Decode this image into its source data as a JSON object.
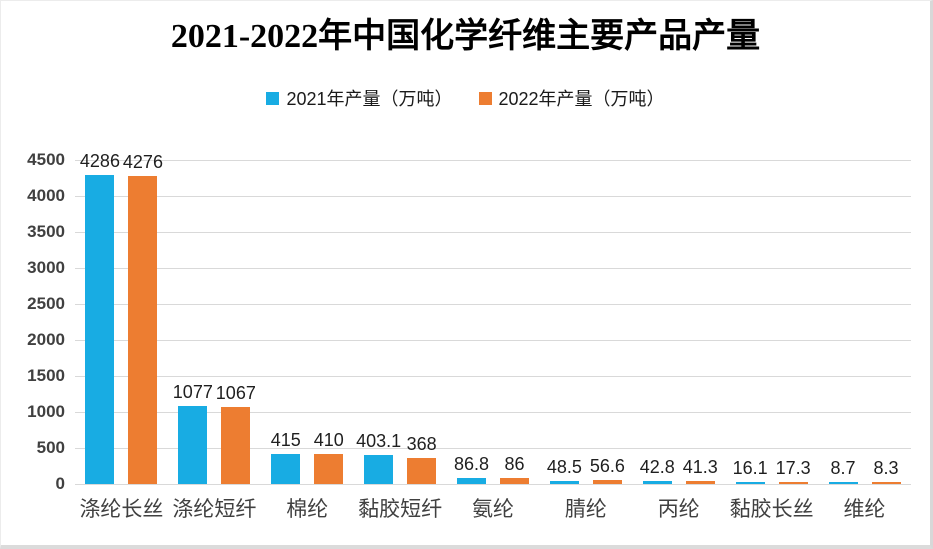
{
  "title": "2021-2022年中国化学纤维主要产品产量",
  "legend": {
    "items": [
      {
        "label": "2021年产量（万吨）",
        "color": "#18ACE3"
      },
      {
        "label": "2022年产量（万吨）",
        "color": "#ED7D31"
      }
    ]
  },
  "chart_data": {
    "type": "bar",
    "title": "2021-2022年中国化学纤维主要产品产量",
    "categories": [
      "涤纶长丝",
      "涤纶短纤",
      "棉纶",
      "黏胶短纤",
      "氨纶",
      "腈纶",
      "丙纶",
      "黏胶长丝",
      "维纶"
    ],
    "series": [
      {
        "name": "2021年产量（万吨）",
        "color": "#18ACE3",
        "values": [
          4286,
          1077,
          415,
          403.1,
          86.8,
          48.5,
          42.8,
          16.1,
          8.7
        ]
      },
      {
        "name": "2022年产量（万吨）",
        "color": "#ED7D31",
        "values": [
          4276,
          1067,
          410,
          368,
          86,
          56.6,
          41.3,
          17.3,
          8.3
        ]
      }
    ],
    "ylim": [
      0,
      4500
    ],
    "yticks": [
      "0",
      "500",
      "1000",
      "1500",
      "2000",
      "2500",
      "3000",
      "3500",
      "4000",
      "4500"
    ],
    "grid": true,
    "legend_position": "top",
    "xlabel": "",
    "ylabel": ""
  },
  "colors": {
    "gridline": "#d9d9d9",
    "axis_text": "#404040",
    "value_label_text": "#1f1f1f",
    "title_text": "#000000",
    "background": "#ffffff"
  }
}
